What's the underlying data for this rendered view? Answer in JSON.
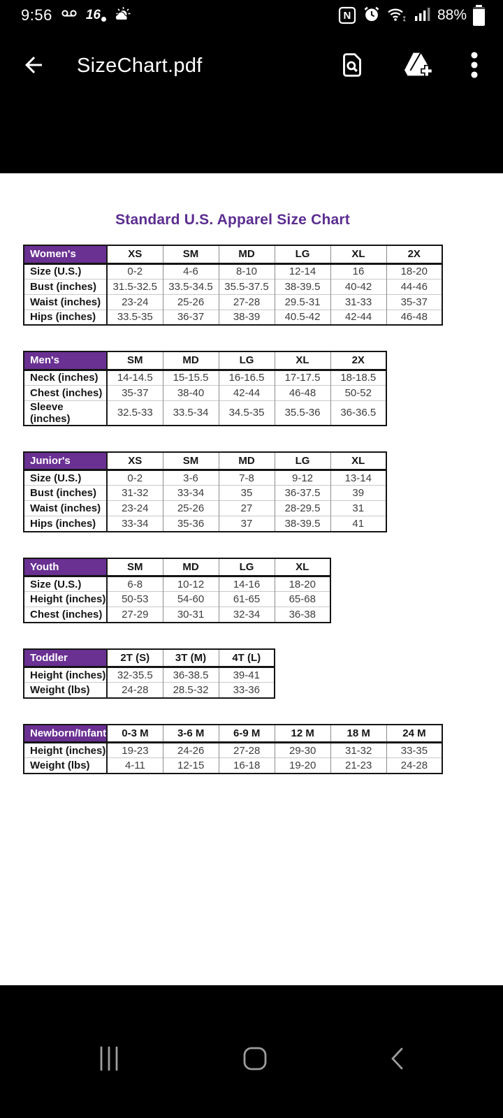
{
  "status_bar": {
    "time": "9:56",
    "left_icons": [
      "voicemail-icon",
      "news-16-badge",
      "weather-partly-cloudy-icon"
    ],
    "news_badge_text": "16",
    "nfc_letter": "N",
    "right_icons": [
      "nfc-icon",
      "alarm-icon",
      "wifi-icon",
      "signal-strength-icon",
      "battery-icon"
    ],
    "battery_percent": "88%",
    "battery_level": 88
  },
  "app_bar": {
    "title": "SizeChart.pdf",
    "back_icon": "back-arrow-icon",
    "actions": [
      "find-in-document",
      "add-to-drive",
      "more-options"
    ]
  },
  "document": {
    "title": "Standard U.S. Apparel Size Chart",
    "colors": {
      "title": "#5b2d90",
      "header_bg": "#6a3092",
      "header_text": "#ffffff"
    },
    "tables": [
      {
        "id": "womens",
        "name": "Women's",
        "columns": [
          "XS",
          "SM",
          "MD",
          "LG",
          "XL",
          "2X"
        ],
        "rows": [
          {
            "label": "Size (U.S.)",
            "values": [
              "0-2",
              "4-6",
              "8-10",
              "12-14",
              "16",
              "18-20"
            ]
          },
          {
            "label": "Bust (inches)",
            "values": [
              "31.5-32.5",
              "33.5-34.5",
              "35.5-37.5",
              "38-39.5",
              "40-42",
              "44-46"
            ]
          },
          {
            "label": "Waist (inches)",
            "values": [
              "23-24",
              "25-26",
              "27-28",
              "29.5-31",
              "31-33",
              "35-37"
            ]
          },
          {
            "label": "Hips (inches)",
            "values": [
              "33.5-35",
              "36-37",
              "38-39",
              "40.5-42",
              "42-44",
              "46-48"
            ]
          }
        ]
      },
      {
        "id": "mens",
        "name": "Men's",
        "columns": [
          "SM",
          "MD",
          "LG",
          "XL",
          "2X"
        ],
        "rows": [
          {
            "label": "Neck (inches)",
            "values": [
              "14-14.5",
              "15-15.5",
              "16-16.5",
              "17-17.5",
              "18-18.5"
            ]
          },
          {
            "label": "Chest (inches)",
            "values": [
              "35-37",
              "38-40",
              "42-44",
              "46-48",
              "50-52"
            ]
          },
          {
            "label": "Sleeve (inches)",
            "values": [
              "32.5-33",
              "33.5-34",
              "34.5-35",
              "35.5-36",
              "36-36.5"
            ]
          }
        ]
      },
      {
        "id": "juniors",
        "name": "Junior's",
        "columns": [
          "XS",
          "SM",
          "MD",
          "LG",
          "XL"
        ],
        "rows": [
          {
            "label": "Size (U.S.)",
            "values": [
              "0-2",
              "3-6",
              "7-8",
              "9-12",
              "13-14"
            ]
          },
          {
            "label": "Bust (inches)",
            "values": [
              "31-32",
              "33-34",
              "35",
              "36-37.5",
              "39"
            ]
          },
          {
            "label": "Waist (inches)",
            "values": [
              "23-24",
              "25-26",
              "27",
              "28-29.5",
              "31"
            ]
          },
          {
            "label": "Hips (inches)",
            "values": [
              "33-34",
              "35-36",
              "37",
              "38-39.5",
              "41"
            ]
          }
        ]
      },
      {
        "id": "youth",
        "name": "Youth",
        "columns": [
          "SM",
          "MD",
          "LG",
          "XL"
        ],
        "rows": [
          {
            "label": "Size (U.S.)",
            "values": [
              "6-8",
              "10-12",
              "14-16",
              "18-20"
            ]
          },
          {
            "label": "Height (inches)",
            "values": [
              "50-53",
              "54-60",
              "61-65",
              "65-68"
            ]
          },
          {
            "label": "Chest (inches)",
            "values": [
              "27-29",
              "30-31",
              "32-34",
              "36-38"
            ]
          }
        ]
      },
      {
        "id": "toddler",
        "name": "Toddler",
        "columns": [
          "2T (S)",
          "3T (M)",
          "4T (L)"
        ],
        "rows": [
          {
            "label": "Height (inches)",
            "values": [
              "32-35.5",
              "36-38.5",
              "39-41"
            ]
          },
          {
            "label": "Weight (lbs)",
            "values": [
              "24-28",
              "28.5-32",
              "33-36"
            ]
          }
        ]
      },
      {
        "id": "newborn",
        "name": "Newborn/Infant",
        "columns": [
          "0-3 M",
          "3-6 M",
          "6-9 M",
          "12 M",
          "18 M",
          "24 M"
        ],
        "rows": [
          {
            "label": "Height (inches)",
            "values": [
              "19-23",
              "24-26",
              "27-28",
              "29-30",
              "31-32",
              "33-35"
            ]
          },
          {
            "label": "Weight (lbs)",
            "values": [
              "4-11",
              "12-15",
              "16-18",
              "19-20",
              "21-23",
              "24-28"
            ]
          }
        ]
      }
    ],
    "layout": {
      "label_col_width": 119,
      "data_col_width": 80
    }
  },
  "nav_bar": {
    "icons": [
      "recents-icon",
      "home-icon",
      "back-icon"
    ]
  }
}
